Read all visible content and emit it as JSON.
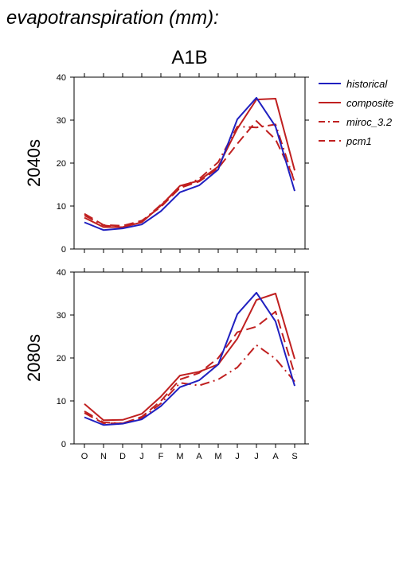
{
  "header": {
    "title": "evapotranspiration (mm):",
    "scenario": "A1B"
  },
  "chart_data": {
    "type": "line",
    "categories": [
      "O",
      "N",
      "D",
      "J",
      "F",
      "M",
      "A",
      "M",
      "J",
      "J",
      "A",
      "S"
    ],
    "ylim": [
      0,
      40
    ],
    "yticks": [
      0,
      10,
      20,
      30,
      40
    ],
    "legend": {
      "placement": "right",
      "entries": [
        {
          "name": "historical",
          "color": "#2020c0",
          "dash": "solid"
        },
        {
          "name": "composite",
          "color": "#c02020",
          "dash": "solid"
        },
        {
          "name": "miroc_3.2",
          "color": "#c02020",
          "dash": "dashdot"
        },
        {
          "name": "pcm1",
          "color": "#c02020",
          "dash": "dash"
        }
      ]
    },
    "panels": [
      {
        "label": "2040s",
        "series": [
          {
            "name": "historical",
            "values": [
              6.2,
              4.4,
              4.8,
              5.7,
              8.8,
              13.2,
              14.8,
              18.5,
              30.2,
              35.2,
              28.5,
              13.5
            ]
          },
          {
            "name": "composite",
            "values": [
              7.3,
              5.1,
              5.1,
              6.2,
              10.1,
              14.7,
              15.9,
              19.2,
              28.0,
              34.8,
              35.0,
              18.3
            ]
          },
          {
            "name": "miroc_3.2",
            "values": [
              7.8,
              5.5,
              5.0,
              6.4,
              10.3,
              14.3,
              16.3,
              20.2,
              28.5,
              28.3,
              29.0,
              15.5
            ]
          },
          {
            "name": "pcm1",
            "values": [
              8.2,
              5.6,
              5.4,
              6.6,
              9.8,
              14.2,
              15.7,
              18.8,
              24.5,
              29.8,
              25.5,
              16.2
            ]
          }
        ]
      },
      {
        "label": "2080s",
        "series": [
          {
            "name": "historical",
            "values": [
              6.2,
              4.4,
              4.7,
              5.7,
              8.8,
              13.2,
              14.8,
              18.5,
              30.2,
              35.2,
              28.5,
              13.5
            ]
          },
          {
            "name": "composite",
            "values": [
              9.3,
              5.5,
              5.6,
              7.0,
              11.0,
              15.9,
              16.8,
              18.5,
              24.5,
              33.5,
              35.0,
              19.8
            ]
          },
          {
            "name": "miroc_3.2",
            "values": [
              7.6,
              5.0,
              4.8,
              6.0,
              9.4,
              14.2,
              13.6,
              15.0,
              17.8,
              23.0,
              19.8,
              14.5
            ]
          },
          {
            "name": "pcm1",
            "values": [
              7.2,
              4.8,
              4.8,
              6.3,
              10.0,
              15.0,
              16.5,
              20.0,
              26.0,
              27.3,
              30.8,
              16.2
            ]
          }
        ]
      }
    ]
  }
}
